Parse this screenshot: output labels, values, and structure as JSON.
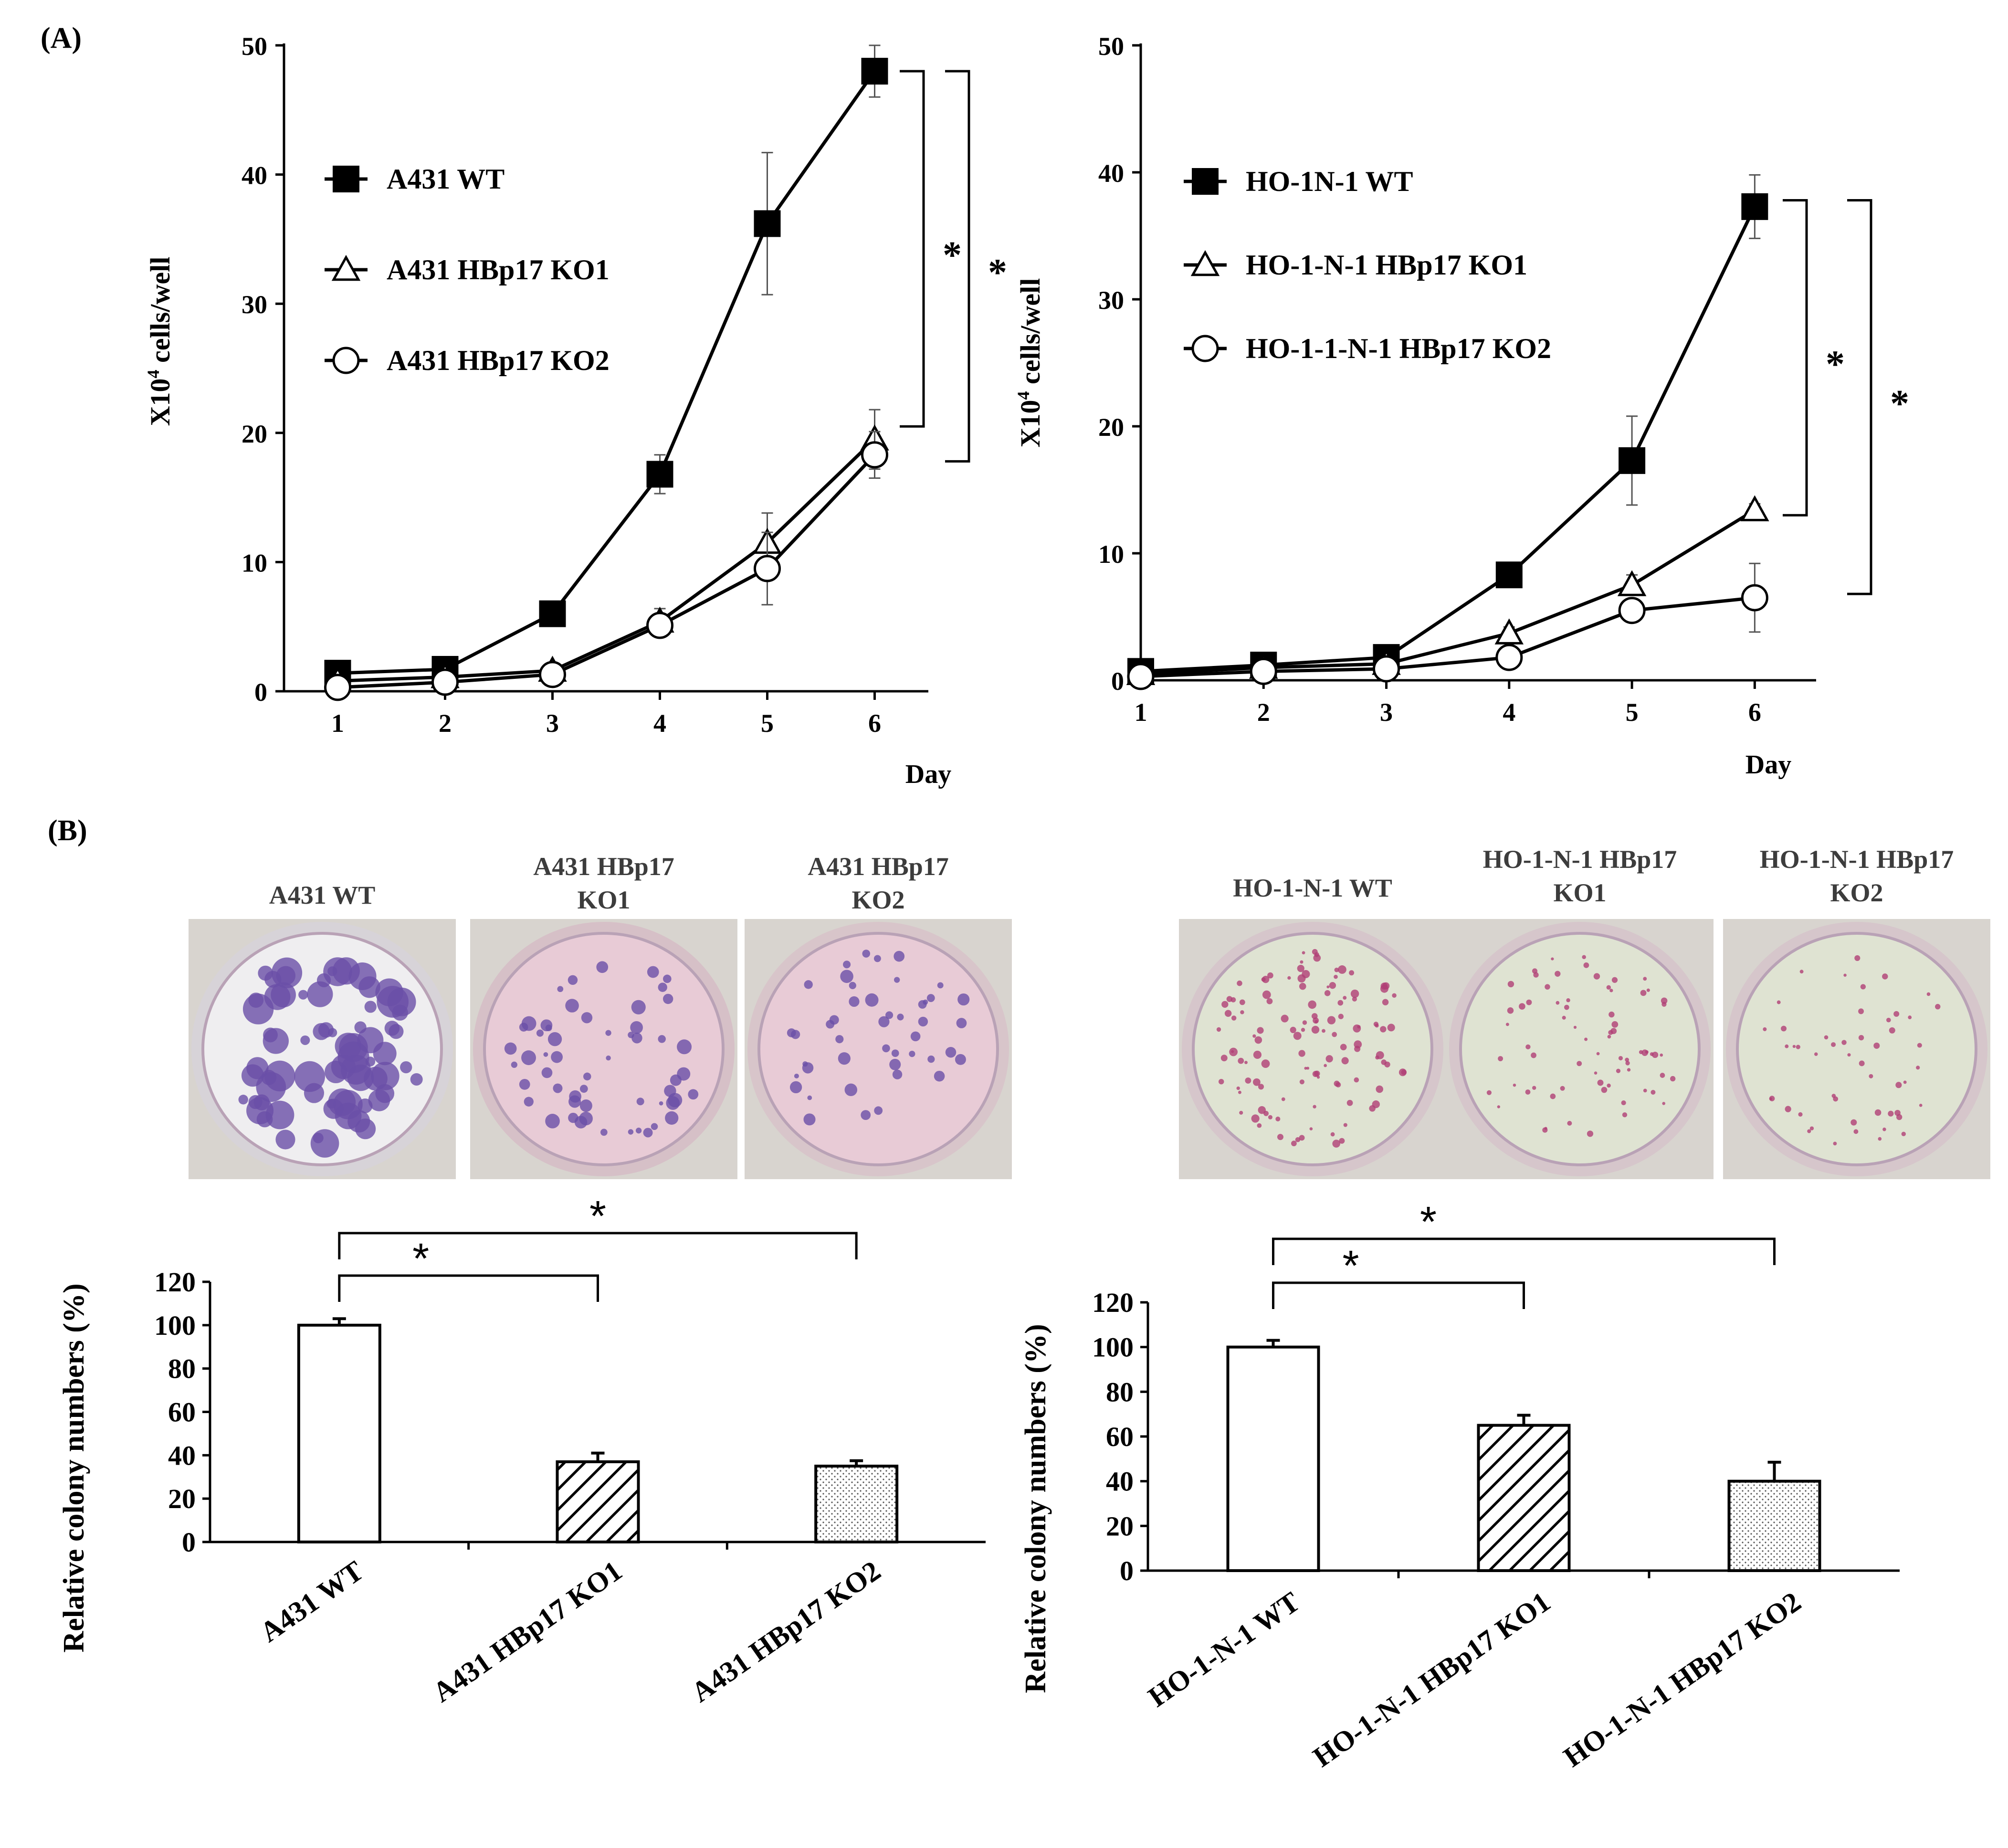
{
  "panel_labels": {
    "a": "(A)",
    "b": "(B)"
  },
  "colors": {
    "ink": "#000000",
    "wt_marker": "#000000",
    "ko_marker": "#ffffff",
    "dish_a431_wt": "#efeef0",
    "dish_a431_ko": "#e8cbd6",
    "dish_ho_bg": "#dfe3d2",
    "colony_a431": "#6a4fa8",
    "colony_ho": "#b03e76"
  },
  "icons": {
    "significance": "asterisk-mark",
    "wt_marker": "filled-square",
    "ko1_marker": "open-triangle",
    "ko2_marker": "open-circle"
  },
  "dish_photos": {
    "left": [
      {
        "label_line1": "A431 WT",
        "label_line2": ""
      },
      {
        "label_line1": "A431 HBp17",
        "label_line2": "KO1"
      },
      {
        "label_line1": "A431 HBp17",
        "label_line2": "KO2"
      }
    ],
    "right": [
      {
        "label_line1": "HO-1-N-1 WT",
        "label_line2": ""
      },
      {
        "label_line1": "HO-1-N-1 HBp17",
        "label_line2": "KO1"
      },
      {
        "label_line1": "HO-1-N-1 HBp17",
        "label_line2": "KO2"
      }
    ]
  },
  "chart_data": [
    {
      "id": "growth_a431",
      "type": "line",
      "title": "",
      "xlabel": "Day",
      "ylabel_prefix": "X10",
      "ylabel_sup": "4",
      "ylabel_suffix": " cells/well",
      "x": [
        1,
        2,
        3,
        4,
        5,
        6
      ],
      "xlim": [
        0.5,
        6.5
      ],
      "ylim": [
        0,
        50
      ],
      "yticks": [
        0,
        10,
        20,
        30,
        40,
        50
      ],
      "series": [
        {
          "name": "A431 WT",
          "marker": "filled-square",
          "values": [
            1.4,
            1.7,
            6.0,
            16.8,
            36.2,
            48.0
          ],
          "errors": [
            0.3,
            0.3,
            0.5,
            1.5,
            5.5,
            2.0
          ]
        },
        {
          "name": "A431 HBp17 KO1",
          "marker": "open-triangle",
          "values": [
            0.8,
            1.1,
            1.6,
            5.4,
            11.5,
            19.5
          ],
          "errors": [
            0.2,
            0.2,
            0.3,
            1.0,
            2.3,
            2.3
          ]
        },
        {
          "name": "A431 HBp17 KO2",
          "marker": "open-circle",
          "values": [
            0.3,
            0.7,
            1.3,
            5.1,
            9.5,
            18.3
          ],
          "errors": [
            0.2,
            0.2,
            0.3,
            0.8,
            2.8,
            1.8
          ]
        }
      ],
      "significance": [
        {
          "from": 48.0,
          "to": 20.5,
          "label": "*"
        },
        {
          "from": 48.0,
          "to": 17.8,
          "label": "*"
        }
      ]
    },
    {
      "id": "growth_ho",
      "type": "line",
      "title": "",
      "xlabel": "Day",
      "ylabel_prefix": "X10",
      "ylabel_sup": "4",
      "ylabel_suffix": " cells/well",
      "x": [
        1,
        2,
        3,
        4,
        5,
        6
      ],
      "xlim": [
        1,
        6.5
      ],
      "ylim": [
        0,
        50
      ],
      "yticks": [
        0,
        10,
        20,
        30,
        40,
        50
      ],
      "series": [
        {
          "name": "HO-1N-1 WT",
          "marker": "filled-square",
          "values": [
            0.7,
            1.2,
            1.8,
            8.3,
            17.3,
            37.3
          ],
          "errors": [
            0.2,
            0.2,
            0.3,
            0.8,
            3.5,
            2.5
          ]
        },
        {
          "name": "HO-1-N-1 HBp17 KO1",
          "marker": "open-triangle",
          "values": [
            0.5,
            1.0,
            1.3,
            3.7,
            7.5,
            13.4
          ],
          "errors": [
            0.2,
            0.2,
            0.2,
            0.5,
            0.8,
            0.5
          ]
        },
        {
          "name": "HO-1-1-N-1 HBp17 KO2",
          "marker": "open-circle",
          "values": [
            0.3,
            0.7,
            0.9,
            1.8,
            5.5,
            6.5
          ],
          "errors": [
            0.1,
            0.2,
            0.2,
            0.4,
            0.8,
            2.7
          ]
        }
      ],
      "significance": [
        {
          "from": 37.8,
          "to": 13.0,
          "label": "*"
        },
        {
          "from": 37.8,
          "to": 6.8,
          "label": "*"
        }
      ]
    },
    {
      "id": "colony_a431",
      "type": "bar",
      "title": "",
      "ylabel": "Relative  colony numbers (%)",
      "categories": [
        "A431 WT",
        "A431 HBp17 KO1",
        "A431 HBp17 KO2"
      ],
      "values": [
        100,
        37,
        35
      ],
      "errors": [
        3,
        4,
        2.5
      ],
      "patterns": [
        "none",
        "hatch",
        "dots"
      ],
      "ylim": [
        0,
        120
      ],
      "yticks": [
        0,
        20,
        40,
        60,
        80,
        100,
        120
      ],
      "significance": [
        {
          "a": 0,
          "b": 1,
          "label": "*"
        },
        {
          "a": 0,
          "b": 2,
          "label": "*"
        }
      ]
    },
    {
      "id": "colony_ho",
      "type": "bar",
      "title": "",
      "ylabel": "Relative  colony numbers (%)",
      "categories": [
        "HO-1-N-1 WT",
        "HO-1-N-1 HBp17 KO1",
        "HO-1-N-1 HBp17 KO2"
      ],
      "values": [
        100,
        65,
        40
      ],
      "errors": [
        3,
        4.5,
        8.5
      ],
      "patterns": [
        "none",
        "hatch",
        "dots"
      ],
      "ylim": [
        0,
        120
      ],
      "yticks": [
        0,
        20,
        40,
        60,
        80,
        100,
        120
      ],
      "significance": [
        {
          "a": 0,
          "b": 1,
          "label": "*"
        },
        {
          "a": 0,
          "b": 2,
          "label": "*"
        }
      ]
    }
  ]
}
